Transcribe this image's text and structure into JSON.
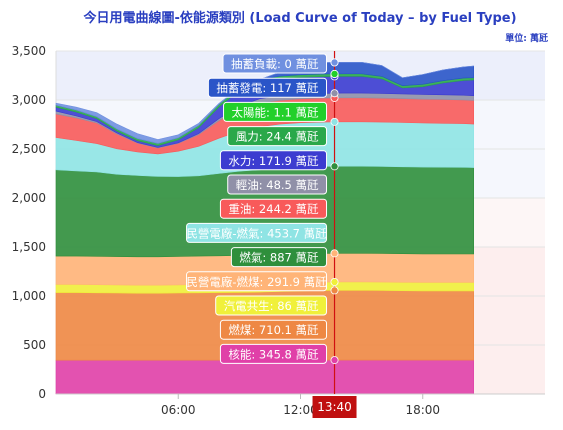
{
  "chart_data": {
    "type": "area",
    "stacked": true,
    "title": "今日用電曲線圖-依能源類別 (Load Curve of Today – by Fuel Type)",
    "unit_label": "單位: 萬瓩",
    "ylim": [
      0,
      3500
    ],
    "yticks": [
      "0",
      "500",
      "1,000",
      "1,500",
      "2,000",
      "2,500",
      "3,000",
      "3,500"
    ],
    "xlim_hours": [
      0,
      24
    ],
    "xticks": [
      {
        "hour": 6,
        "label": "06:00"
      },
      {
        "hour": 12,
        "label": "12:00"
      },
      {
        "hour": 18,
        "label": "18:00"
      }
    ],
    "cursor_time": "13:40",
    "cursor_hour": 13.67,
    "data_end_hour": 20.5,
    "reserve_bands": [
      {
        "from": 0,
        "to": 1500,
        "color": "#fdeeee"
      },
      {
        "from": 1500,
        "to": 2000,
        "color": "#fdf6f6"
      },
      {
        "from": 2000,
        "to": 3000,
        "color": "#f5f7fd"
      },
      {
        "from": 3000,
        "to": 3500,
        "color": "#eceffb"
      }
    ],
    "x_hours": [
      0,
      1,
      2,
      3,
      4,
      5,
      6,
      7,
      8,
      9,
      10,
      11,
      12,
      13,
      14,
      15,
      16,
      17,
      18,
      19,
      20,
      20.5
    ],
    "series": [
      {
        "name": "核能",
        "tooltip": "核能: 345.8 萬瓩",
        "color": "#e040a8",
        "values": [
          345,
          345,
          345,
          345,
          345,
          345,
          345,
          345,
          345,
          345,
          346,
          346,
          346,
          346,
          346,
          346,
          346,
          346,
          346,
          346,
          346,
          346
        ]
      },
      {
        "name": "燃煤",
        "tooltip": "燃煤: 710.1 萬瓩",
        "color": "#ee8844",
        "values": [
          690,
          690,
          688,
          686,
          684,
          684,
          686,
          688,
          690,
          692,
          694,
          700,
          706,
          710,
          712,
          712,
          710,
          708,
          706,
          706,
          706,
          706
        ]
      },
      {
        "name": "汽電共生",
        "tooltip": "汽電共生: 86 萬瓩",
        "color": "#f0f03a",
        "values": [
          82,
          82,
          82,
          81,
          81,
          81,
          82,
          83,
          84,
          85,
          86,
          86,
          86,
          86,
          86,
          86,
          86,
          86,
          86,
          86,
          86,
          86
        ]
      },
      {
        "name": "民營電廠-燃煤",
        "tooltip": "民營電廠-燃煤: 291.9 萬瓩",
        "color": "#ffb478",
        "values": [
          290,
          290,
          290,
          290,
          290,
          290,
          290,
          291,
          291,
          291,
          292,
          292,
          292,
          292,
          292,
          292,
          292,
          292,
          292,
          292,
          292,
          292
        ]
      },
      {
        "name": "燃氣",
        "tooltip": "燃氣: 887 萬瓩",
        "color": "#2f8f3c",
        "values": [
          880,
          870,
          860,
          840,
          830,
          820,
          815,
          820,
          840,
          860,
          870,
          880,
          885,
          887,
          888,
          888,
          887,
          886,
          885,
          884,
          883,
          880
        ]
      },
      {
        "name": "民營電廠-燃氣",
        "tooltip": "民營電廠-燃氣: 453.7 萬瓩",
        "color": "#8fe4e4",
        "values": [
          330,
          310,
          290,
          260,
          240,
          230,
          260,
          300,
          360,
          410,
          440,
          450,
          453,
          454,
          454,
          454,
          453,
          452,
          450,
          448,
          446,
          444
        ]
      },
      {
        "name": "重油",
        "tooltip": "重油: 244.2 萬瓩",
        "color": "#f85a5a",
        "values": [
          240,
          230,
          210,
          150,
          90,
          60,
          80,
          120,
          180,
          220,
          240,
          243,
          244,
          244,
          244,
          244,
          244,
          244,
          243,
          243,
          242,
          242
        ]
      },
      {
        "name": "輕油",
        "tooltip": "輕油: 48.5 萬瓩",
        "color": "#9090a8",
        "values": [
          30,
          20,
          15,
          10,
          5,
          5,
          5,
          10,
          20,
          35,
          45,
          48,
          48,
          48,
          48,
          48,
          48,
          48,
          48,
          48,
          48,
          48
        ]
      },
      {
        "name": "水力",
        "tooltip": "水力: 171.9 萬瓩",
        "color": "#3c3cd0",
        "values": [
          40,
          40,
          30,
          20,
          20,
          20,
          30,
          60,
          120,
          160,
          170,
          172,
          172,
          172,
          172,
          172,
          150,
          60,
          80,
          120,
          150,
          160
        ]
      },
      {
        "name": "風力",
        "tooltip": "風力: 24.4 萬瓩",
        "color": "#2aa84a",
        "values": [
          20,
          20,
          20,
          21,
          21,
          22,
          22,
          23,
          23,
          24,
          24,
          24,
          24,
          24,
          24,
          24,
          24,
          24,
          24,
          24,
          24,
          24
        ]
      },
      {
        "name": "太陽能",
        "tooltip": "太陽能: 1.1 萬瓩",
        "color": "#22d02a",
        "values": [
          0,
          0,
          0,
          0,
          0,
          0,
          0,
          1,
          3,
          4,
          3,
          2,
          1.5,
          1.1,
          1,
          1,
          0.6,
          0.2,
          0,
          0,
          0,
          0
        ]
      },
      {
        "name": "抽蓄發電",
        "tooltip": "抽蓄發電: 117 萬瓩",
        "color": "#2a55c8",
        "values": [
          0,
          0,
          0,
          0,
          0,
          0,
          0,
          0,
          0,
          0,
          0,
          40,
          100,
          117,
          118,
          118,
          110,
          80,
          100,
          110,
          115,
          118
        ]
      },
      {
        "name": "抽蓄負載",
        "tooltip": "抽蓄負載: 0 萬瓩",
        "color": "#7090e0",
        "values": [
          20,
          30,
          40,
          50,
          50,
          40,
          30,
          20,
          10,
          0,
          0,
          0,
          0,
          0,
          0,
          0,
          0,
          0,
          0,
          0,
          0,
          0
        ]
      }
    ]
  }
}
